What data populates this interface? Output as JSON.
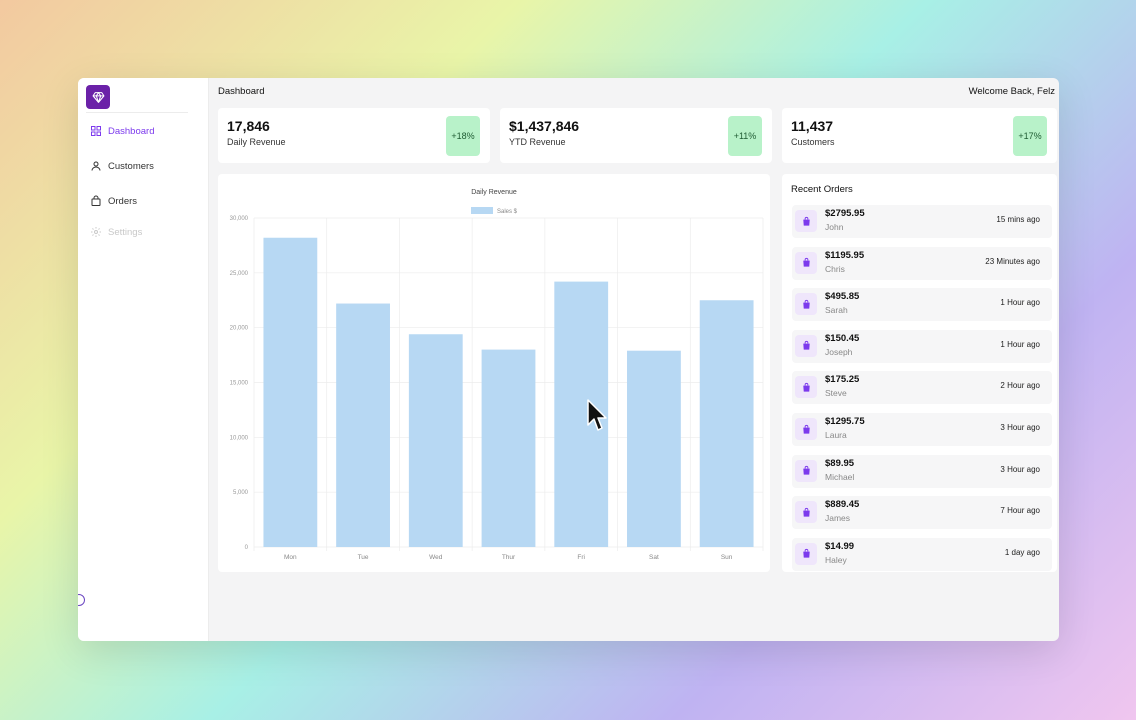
{
  "header": {
    "title": "Dashboard",
    "welcome": "Welcome Back, Felz"
  },
  "sidebar": {
    "logo_icon": "diamond-icon",
    "items": [
      {
        "label": "Dashboard",
        "icon": "grid-icon",
        "active": true
      },
      {
        "label": "Customers",
        "icon": "person-icon",
        "active": false
      },
      {
        "label": "Orders",
        "icon": "bag-icon",
        "active": false
      },
      {
        "label": "Settings",
        "icon": "gear-icon",
        "active": false
      }
    ]
  },
  "stats": [
    {
      "value": "17,846",
      "label": "Daily Revenue",
      "change": "+18%"
    },
    {
      "value": "$1,437,846",
      "label": "YTD Revenue",
      "change": "+11%"
    },
    {
      "value": "11,437",
      "label": "Customers",
      "change": "+17%"
    }
  ],
  "colors": {
    "accent": "#7c3aed",
    "logo": "#6b21a8",
    "badge": "#b8f2c9",
    "bar": "#b7d8f3"
  },
  "chart_data": {
    "type": "bar",
    "title": "Daily Revenue",
    "categories": [
      "Mon",
      "Tue",
      "Wed",
      "Thur",
      "Fri",
      "Sat",
      "Sun"
    ],
    "series": [
      {
        "name": "Sales $",
        "values": [
          28200,
          22200,
          19400,
          18000,
          24200,
          17900,
          22500
        ]
      }
    ],
    "yticks": [
      "0",
      "5,000",
      "10,000",
      "15,000",
      "20,000",
      "25,000",
      "30,000"
    ],
    "ylim": [
      0,
      30000
    ],
    "legend": "top",
    "grid": true
  },
  "orders": {
    "title": "Recent Orders",
    "items": [
      {
        "amount": "$2795.95",
        "name": "John",
        "time": "15 mins ago"
      },
      {
        "amount": "$1195.95",
        "name": "Chris",
        "time": "23 Minutes ago"
      },
      {
        "amount": "$495.85",
        "name": "Sarah",
        "time": "1 Hour ago"
      },
      {
        "amount": "$150.45",
        "name": "Joseph",
        "time": "1 Hour ago"
      },
      {
        "amount": "$175.25",
        "name": "Steve",
        "time": "2 Hour ago"
      },
      {
        "amount": "$1295.75",
        "name": "Laura",
        "time": "3 Hour ago"
      },
      {
        "amount": "$89.95",
        "name": "Michael",
        "time": "3 Hour ago"
      },
      {
        "amount": "$889.45",
        "name": "James",
        "time": "7 Hour ago"
      },
      {
        "amount": "$14.99",
        "name": "Haley",
        "time": "1 day ago"
      }
    ]
  }
}
